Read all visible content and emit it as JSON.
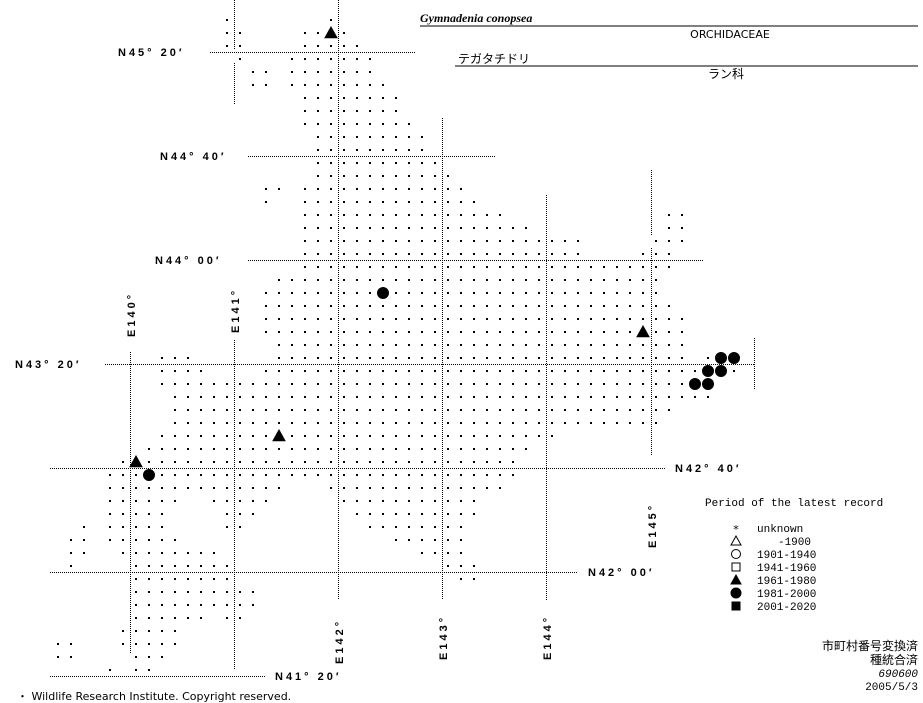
{
  "header": {
    "scientific_name": "Gymnadenia conopsea",
    "family": "ORCHIDACEAE",
    "japanese_name": "テガタチドリ",
    "japanese_family": "ラン科"
  },
  "map": {
    "latitude_labels": [
      "N45° 20′",
      "N44° 40′",
      "N44° 00′",
      "N43° 20′",
      "N42° 40′",
      "N42° 00′",
      "N41° 20′"
    ],
    "longitude_labels": [
      "E140°",
      "E141°",
      "E142°",
      "E143°",
      "E144°",
      "E145°"
    ]
  },
  "legend": {
    "title": "Period of the latest record",
    "items": [
      {
        "symbol": "asterisk",
        "label": "unknown"
      },
      {
        "symbol": "open-triangle",
        "label": "-1900"
      },
      {
        "symbol": "open-circle",
        "label": "1901-1940"
      },
      {
        "symbol": "open-square",
        "label": "1941-1960"
      },
      {
        "symbol": "filled-triangle",
        "label": "1961-1980"
      },
      {
        "symbol": "filled-circle",
        "label": "1981-2000"
      },
      {
        "symbol": "filled-square",
        "label": "2001-2020"
      }
    ]
  },
  "footer": {
    "status_1": "市町村番号変換済",
    "status_2": "種統合済",
    "code": "690600",
    "date": "2005/5/3",
    "copyright": "・ Wildlife Research Institute. Copyright reserved."
  },
  "colors": {
    "ink": "#000000",
    "background": "#ffffff"
  }
}
